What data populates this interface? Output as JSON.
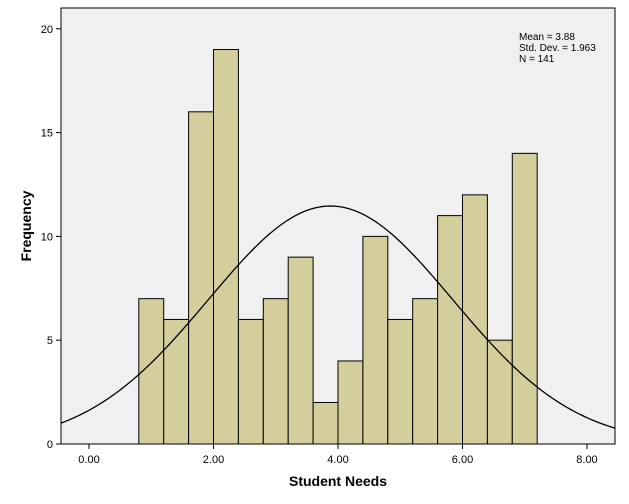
{
  "chart_data": {
    "type": "bar",
    "subtype": "histogram_with_normal_curve",
    "xlabel": "Student Needs",
    "ylabel": "Frequency",
    "xlim": [
      -0.45,
      8.45
    ],
    "ylim": [
      0,
      21
    ],
    "x_ticks": [
      0,
      2,
      4,
      6,
      8
    ],
    "x_tick_labels": [
      "0.00",
      "2.00",
      "4.00",
      "6.00",
      "8.00"
    ],
    "y_ticks": [
      0,
      5,
      10,
      15,
      20
    ],
    "y_tick_labels": [
      "0",
      "5",
      "10",
      "15",
      "20"
    ],
    "bin_width": 0.4,
    "bins": [
      {
        "start": 0.8,
        "end": 1.2,
        "count": 7
      },
      {
        "start": 1.2,
        "end": 1.6,
        "count": 6
      },
      {
        "start": 1.6,
        "end": 2.0,
        "count": 16
      },
      {
        "start": 2.0,
        "end": 2.4,
        "count": 19
      },
      {
        "start": 2.4,
        "end": 2.8,
        "count": 6
      },
      {
        "start": 2.8,
        "end": 3.2,
        "count": 7
      },
      {
        "start": 3.2,
        "end": 3.6,
        "count": 9
      },
      {
        "start": 3.6,
        "end": 4.0,
        "count": 2
      },
      {
        "start": 4.0,
        "end": 4.4,
        "count": 4
      },
      {
        "start": 4.4,
        "end": 4.8,
        "count": 10
      },
      {
        "start": 4.8,
        "end": 5.2,
        "count": 6
      },
      {
        "start": 5.2,
        "end": 5.6,
        "count": 7
      },
      {
        "start": 5.6,
        "end": 6.0,
        "count": 11
      },
      {
        "start": 6.0,
        "end": 6.4,
        "count": 12
      },
      {
        "start": 6.4,
        "end": 6.8,
        "count": 5
      },
      {
        "start": 6.8,
        "end": 7.2,
        "count": 14
      }
    ],
    "normal_curve": {
      "mean": 3.88,
      "std_dev": 1.963,
      "n": 141
    },
    "stats_lines": [
      "Mean = 3.88",
      "Std. Dev. = 1.963",
      "N = 141"
    ],
    "grid": false,
    "colors": {
      "plot_background": "#f0f0f0",
      "bar_fill": "#d3ce9b",
      "bar_stroke": "#000000",
      "curve": "#000000"
    }
  }
}
